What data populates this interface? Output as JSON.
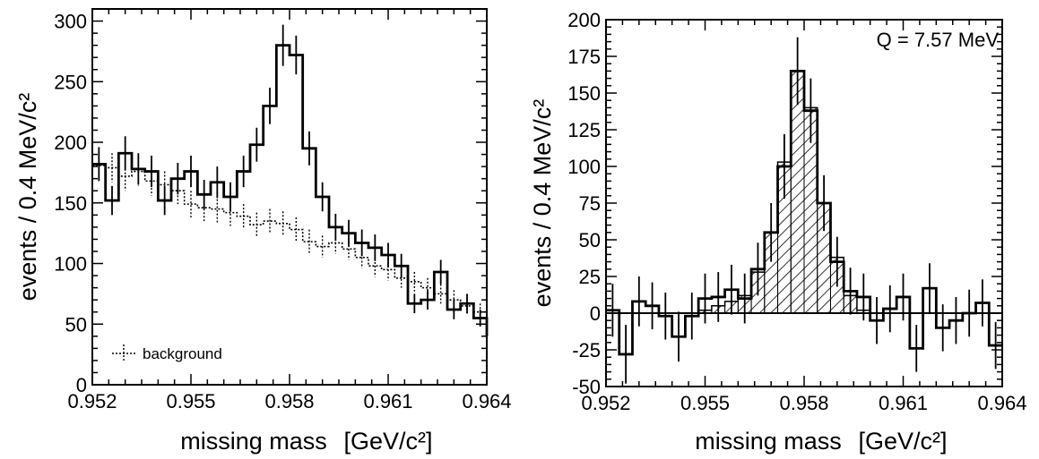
{
  "chart_data": [
    {
      "type": "histogram",
      "xlabel": "missing mass",
      "xunit": "[GeV/c²]",
      "ylabel": "events / 0.4 MeV/c²",
      "xlim": [
        0.952,
        0.964
      ],
      "ylim": [
        0,
        310
      ],
      "xticks": [
        "0.952",
        "0.955",
        "0.958",
        "0.961",
        "0.964"
      ],
      "yticks": [
        "0",
        "50",
        "100",
        "150",
        "200",
        "250",
        "300"
      ],
      "bin_width": 0.0004,
      "bin_start": 0.952,
      "series": [
        {
          "name": "",
          "style": "solid",
          "values": [
            182,
            152,
            191,
            178,
            176,
            152,
            170,
            176,
            157,
            167,
            155,
            176,
            198,
            230,
            280,
            272,
            195,
            155,
            130,
            125,
            117,
            113,
            107,
            98,
            67,
            70,
            93,
            62,
            67,
            55,
            40
          ],
          "errors": [
            14,
            12,
            14,
            13,
            13,
            12,
            13,
            13,
            12,
            13,
            12,
            13,
            14,
            15,
            17,
            16,
            14,
            12,
            11,
            11,
            11,
            11,
            10,
            10,
            8,
            8,
            10,
            8,
            8,
            7,
            6
          ]
        },
        {
          "name": "background",
          "style": "dotted",
          "values": [
            181,
            179,
            172,
            176,
            168,
            165,
            160,
            149,
            146,
            145,
            142,
            139,
            132,
            135,
            133,
            128,
            118,
            114,
            117,
            112,
            105,
            98,
            95,
            88,
            85,
            80,
            75,
            70,
            65,
            60,
            58
          ],
          "errors": [
            12,
            12,
            12,
            12,
            12,
            11,
            11,
            11,
            11,
            11,
            11,
            10,
            10,
            10,
            10,
            10,
            10,
            9,
            9,
            9,
            9,
            9,
            9,
            8,
            8,
            8,
            8,
            8,
            7,
            7,
            7
          ]
        }
      ],
      "legend": {
        "entries": [
          "background"
        ],
        "position": "bottom-left"
      }
    },
    {
      "type": "histogram",
      "xlabel": "missing mass",
      "xunit": "[GeV/c²]",
      "ylabel": "events / 0.4 MeV/c²",
      "xlim": [
        0.952,
        0.964
      ],
      "ylim": [
        -50,
        200
      ],
      "xticks": [
        "0.952",
        "0.955",
        "0.958",
        "0.961",
        "0.964"
      ],
      "yticks": [
        "-50",
        "-25",
        "0",
        "25",
        "50",
        "75",
        "100",
        "125",
        "150",
        "175",
        "200"
      ],
      "annotation": "Q = 7.57  MeV",
      "bin_width": 0.0004,
      "bin_start": 0.952,
      "series": [
        {
          "name": "",
          "style": "solid",
          "values": [
            2,
            -28,
            8,
            5,
            -2,
            -16,
            -2,
            10,
            11,
            16,
            10,
            30,
            55,
            100,
            165,
            138,
            75,
            35,
            15,
            11,
            -5,
            3,
            11,
            -24,
            17,
            -10,
            -5,
            0,
            7,
            -22
          ],
          "errors": [
            18,
            20,
            17,
            16,
            16,
            17,
            16,
            17,
            17,
            17,
            17,
            18,
            20,
            22,
            23,
            22,
            19,
            17,
            16,
            16,
            16,
            16,
            16,
            16,
            17,
            16,
            16,
            16,
            16,
            16
          ]
        },
        {
          "name": "",
          "style": "hatched",
          "values": [
            0,
            0,
            0,
            0,
            0,
            0,
            0,
            2,
            5,
            8,
            12,
            28,
            55,
            103,
            165,
            140,
            75,
            38,
            12,
            2,
            0,
            0,
            0,
            0,
            0,
            0,
            0,
            0,
            0,
            0
          ]
        }
      ]
    }
  ]
}
